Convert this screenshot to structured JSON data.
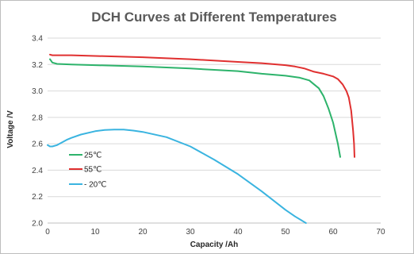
{
  "chart_data": {
    "type": "line",
    "title": "DCH Curves at Different Temperatures",
    "xlabel": "Capacity /Ah",
    "ylabel": "Voltage /V",
    "xlim": [
      0,
      70
    ],
    "ylim": [
      2.0,
      3.4
    ],
    "xticks": [
      "0",
      "10",
      "20",
      "30",
      "40",
      "50",
      "60",
      "70"
    ],
    "yticks": [
      "2.0",
      "2.2",
      "2.4",
      "2.6",
      "2.8",
      "3.0",
      "3.2",
      "3.4"
    ],
    "grid": "horizontal",
    "legend_position": "left",
    "series": [
      {
        "name": "25℃",
        "color": "#2db36b",
        "x": [
          0.5,
          1,
          2,
          5,
          10,
          20,
          30,
          40,
          45,
          50,
          53,
          55,
          56,
          57,
          58,
          59,
          60,
          61,
          61.5
        ],
        "y": [
          3.24,
          3.215,
          3.205,
          3.2,
          3.195,
          3.185,
          3.17,
          3.15,
          3.13,
          3.115,
          3.1,
          3.08,
          3.05,
          3.02,
          2.96,
          2.87,
          2.76,
          2.6,
          2.5
        ]
      },
      {
        "name": "55℃",
        "color": "#e03030",
        "x": [
          0.5,
          1,
          5,
          10,
          20,
          30,
          40,
          45,
          50,
          52,
          54,
          56,
          58,
          60,
          61,
          62,
          62.8,
          63.3,
          63.8,
          64.2,
          64.4,
          64.5
        ],
        "y": [
          3.275,
          3.27,
          3.27,
          3.265,
          3.255,
          3.24,
          3.22,
          3.21,
          3.195,
          3.185,
          3.17,
          3.145,
          3.13,
          3.11,
          3.09,
          3.05,
          3.0,
          2.95,
          2.85,
          2.7,
          2.6,
          2.5
        ]
      },
      {
        "name": "- 20℃",
        "color": "#3ab4e0",
        "x": [
          0,
          0.5,
          1,
          2,
          3,
          4,
          5,
          7,
          10,
          12,
          14,
          16,
          18,
          20,
          25,
          30,
          35,
          40,
          45,
          50,
          52,
          54.3
        ],
        "y": [
          2.59,
          2.58,
          2.58,
          2.59,
          2.61,
          2.63,
          2.645,
          2.67,
          2.695,
          2.705,
          2.708,
          2.707,
          2.7,
          2.69,
          2.65,
          2.58,
          2.48,
          2.37,
          2.24,
          2.1,
          2.05,
          2.0
        ]
      }
    ]
  }
}
